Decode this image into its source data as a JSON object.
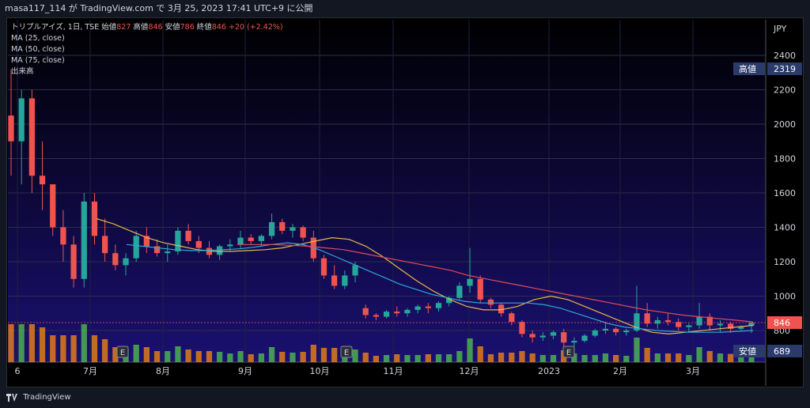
{
  "topbar": {
    "text": "masa117_114 が TradingView.com で 3月 25, 2023 17:41 UTC+9 に公開"
  },
  "legend": {
    "symbol": "トリプルアイズ, 1日, TSE",
    "open_label": "始値",
    "open": "827",
    "high_label": "高値",
    "high": "846",
    "low_label": "安値",
    "low": "786",
    "close_label": "終値",
    "close": "846",
    "change": "+20 (+2.42%)",
    "ma1": "MA (25, close)",
    "ma2": "MA (50, close)",
    "ma3": "MA (75, close)",
    "volume": "出来高"
  },
  "axis": {
    "currency": "JPY"
  },
  "badges": {
    "high_label": "高値",
    "high_value": "2319",
    "low_label": "安値",
    "low_value": "689",
    "last_value": "846"
  },
  "earnings_marker": "E",
  "footer": {
    "brand": "TradingView"
  },
  "colors": {
    "up": "#26a69a",
    "down": "#ef5350",
    "ma25": "#e8b84a",
    "ma50": "#2ea8d8",
    "ma75": "#e04a5a",
    "vol_up": "#4caf50",
    "vol_down": "#e07b1a"
  },
  "chart_data": {
    "type": "candlestick",
    "y_ticks": [
      800,
      1000,
      1200,
      1400,
      1600,
      1800,
      2000,
      2200,
      2400
    ],
    "x_ticks": [
      "6",
      "7月",
      "8月",
      "9月",
      "10月",
      "11月",
      "12月",
      "2023",
      "2月",
      "3月"
    ],
    "ylim": [
      700,
      2500
    ],
    "high": 2319,
    "low": 689,
    "last": 846,
    "ohlc": [
      [
        2050,
        2319,
        1700,
        1900
      ],
      [
        1900,
        2200,
        1650,
        2150
      ],
      [
        2150,
        2200,
        1600,
        1700
      ],
      [
        1700,
        1900,
        1500,
        1650
      ],
      [
        1650,
        1650,
        1350,
        1400
      ],
      [
        1400,
        1500,
        1200,
        1300
      ],
      [
        1300,
        1350,
        1050,
        1100
      ],
      [
        1100,
        1600,
        1050,
        1550
      ],
      [
        1550,
        1600,
        1300,
        1350
      ],
      [
        1350,
        1450,
        1200,
        1250
      ],
      [
        1250,
        1300,
        1150,
        1180
      ],
      [
        1180,
        1250,
        1120,
        1220
      ],
      [
        1220,
        1380,
        1200,
        1350
      ],
      [
        1350,
        1400,
        1250,
        1290
      ],
      [
        1290,
        1330,
        1230,
        1250
      ],
      [
        1250,
        1300,
        1200,
        1260
      ],
      [
        1260,
        1400,
        1240,
        1380
      ],
      [
        1380,
        1420,
        1300,
        1320
      ],
      [
        1320,
        1350,
        1250,
        1280
      ],
      [
        1280,
        1320,
        1220,
        1240
      ],
      [
        1240,
        1300,
        1210,
        1290
      ],
      [
        1290,
        1330,
        1260,
        1300
      ],
      [
        1300,
        1380,
        1280,
        1340
      ],
      [
        1340,
        1360,
        1300,
        1320
      ],
      [
        1320,
        1360,
        1290,
        1350
      ],
      [
        1350,
        1480,
        1330,
        1430
      ],
      [
        1430,
        1450,
        1360,
        1380
      ],
      [
        1380,
        1420,
        1340,
        1400
      ],
      [
        1400,
        1410,
        1320,
        1340
      ],
      [
        1340,
        1380,
        1200,
        1220
      ],
      [
        1220,
        1240,
        1100,
        1120
      ],
      [
        1120,
        1180,
        1040,
        1060
      ],
      [
        1060,
        1150,
        1040,
        1120
      ],
      [
        1120,
        1200,
        1080,
        1180
      ],
      [
        930,
        950,
        870,
        890
      ],
      [
        890,
        900,
        860,
        880
      ],
      [
        880,
        920,
        870,
        910
      ],
      [
        910,
        940,
        880,
        900
      ],
      [
        900,
        930,
        880,
        920
      ],
      [
        920,
        950,
        900,
        940
      ],
      [
        940,
        960,
        900,
        930
      ],
      [
        930,
        970,
        910,
        960
      ],
      [
        960,
        1000,
        940,
        990
      ],
      [
        990,
        1080,
        980,
        1060
      ],
      [
        1060,
        1280,
        1020,
        1100
      ],
      [
        1100,
        1120,
        960,
        980
      ],
      [
        980,
        990,
        930,
        950
      ],
      [
        950,
        960,
        880,
        900
      ],
      [
        900,
        910,
        830,
        850
      ],
      [
        850,
        860,
        760,
        780
      ],
      [
        780,
        800,
        730,
        760
      ],
      [
        760,
        790,
        740,
        770
      ],
      [
        770,
        800,
        750,
        790
      ],
      [
        790,
        810,
        700,
        730
      ],
      [
        730,
        760,
        689,
        740
      ],
      [
        740,
        780,
        730,
        770
      ],
      [
        770,
        810,
        760,
        800
      ],
      [
        800,
        850,
        780,
        810
      ],
      [
        810,
        820,
        770,
        790
      ],
      [
        790,
        810,
        770,
        800
      ],
      [
        800,
        1060,
        790,
        900
      ],
      [
        900,
        960,
        820,
        840
      ],
      [
        840,
        880,
        810,
        860
      ],
      [
        860,
        900,
        830,
        850
      ],
      [
        850,
        870,
        800,
        820
      ],
      [
        820,
        840,
        790,
        830
      ],
      [
        830,
        960,
        810,
        880
      ],
      [
        880,
        900,
        800,
        830
      ],
      [
        830,
        860,
        790,
        840
      ],
      [
        840,
        850,
        786,
        810
      ],
      [
        810,
        830,
        800,
        820
      ],
      [
        827,
        846,
        786,
        846
      ]
    ],
    "ma25": [
      1450,
      1420,
      1380,
      1340,
      1310,
      1290,
      1270,
      1260,
      1260,
      1265,
      1270,
      1280,
      1300,
      1320,
      1340,
      1330,
      1290,
      1230,
      1160,
      1090,
      1030,
      980,
      940,
      920,
      920,
      940,
      980,
      1000,
      980,
      940,
      900,
      860,
      820,
      790,
      780,
      790,
      800,
      810,
      820,
      830
    ],
    "ma50": [
      1300,
      1290,
      1280,
      1270,
      1265,
      1265,
      1270,
      1275,
      1285,
      1300,
      1310,
      1300,
      1270,
      1230,
      1190,
      1150,
      1110,
      1070,
      1040,
      1010,
      990,
      970,
      960,
      960,
      960,
      960,
      950,
      930,
      900,
      870,
      840,
      820,
      810,
      800,
      795,
      790,
      790,
      790,
      795,
      800
    ],
    "ma75": [
      1300,
      1300,
      1300,
      1295,
      1290,
      1280,
      1270,
      1250,
      1230,
      1210,
      1190,
      1170,
      1150,
      1120,
      1100,
      1080,
      1060,
      1040,
      1020,
      1000,
      980,
      960,
      940,
      920,
      905,
      890,
      880,
      870,
      860,
      850
    ]
  }
}
